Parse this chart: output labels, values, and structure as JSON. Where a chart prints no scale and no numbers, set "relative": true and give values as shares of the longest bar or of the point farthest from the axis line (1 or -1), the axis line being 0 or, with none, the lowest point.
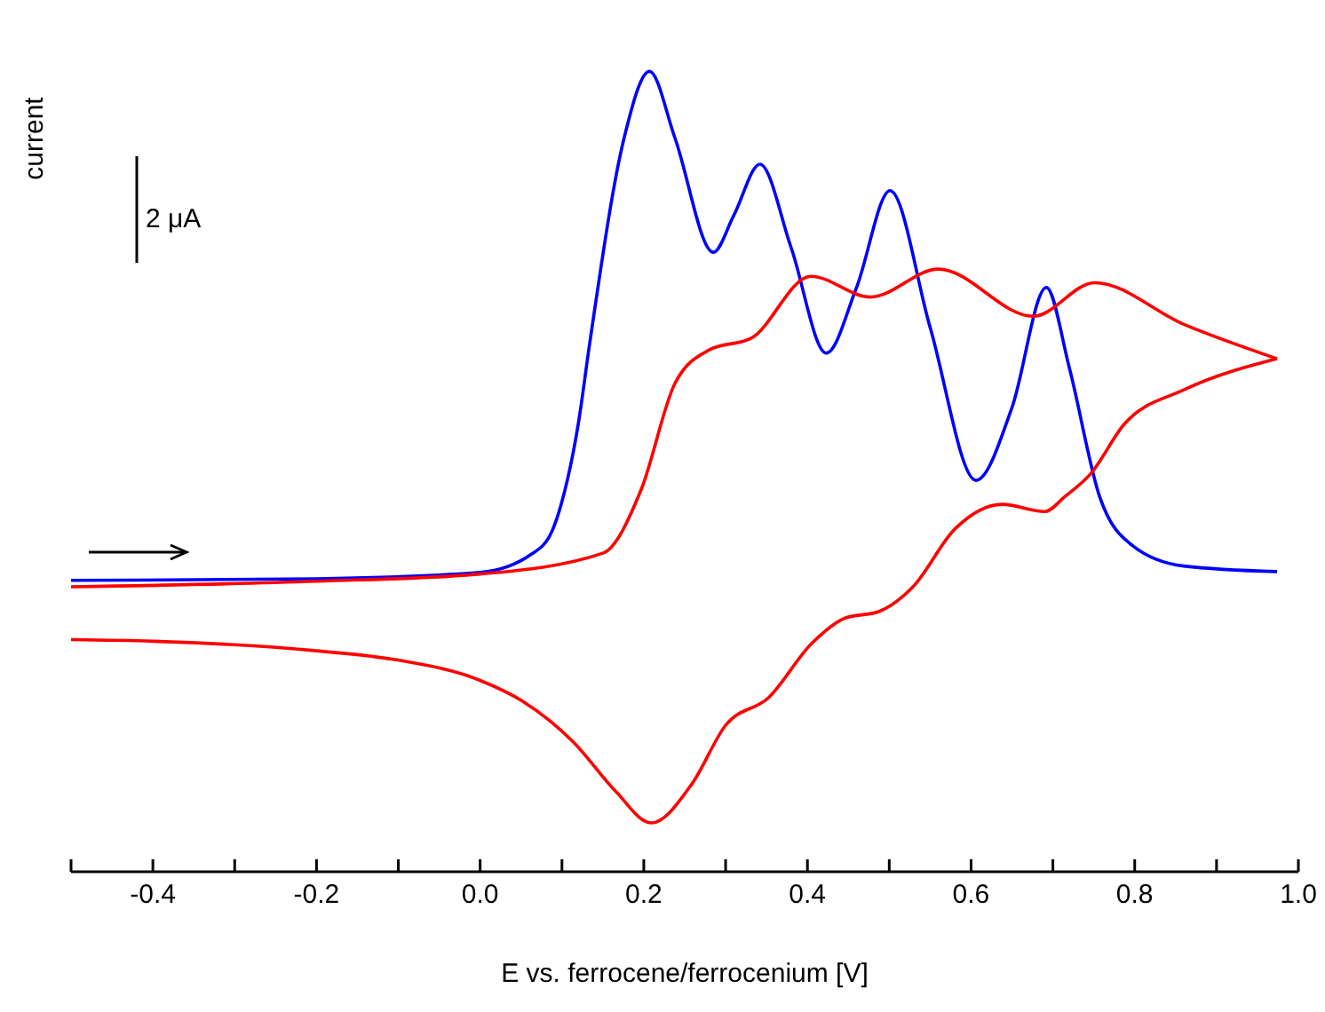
{
  "chart_data": {
    "type": "line",
    "relative": true,
    "xlabel": "E vs. ferrocene/ferrocenium [V]",
    "ylabel": "current",
    "annotations": [
      "2 μA"
    ],
    "xlim": [
      -0.5,
      1.0
    ],
    "xticks": [
      {
        "value": -0.5,
        "label": null
      },
      -0.4,
      {
        "value": -0.3,
        "label": null
      },
      -0.2,
      {
        "value": -0.1,
        "label": null
      },
      {
        "value": 0,
        "label": "0.0"
      },
      {
        "value": 0.1,
        "label": null
      },
      0.2,
      {
        "value": 0.3,
        "label": null
      },
      0.4,
      {
        "value": 0.5,
        "label": null
      },
      0.6,
      {
        "value": 0.7,
        "label": null
      },
      0.8,
      {
        "value": 0.9,
        "label": null
      },
      {
        "value": 1,
        "label": "1.0"
      }
    ],
    "tick_labels": "x",
    "marker": "none",
    "line_style": "solid",
    "series": [
      {
        "color": "#0000ff",
        "x": [
          -0.5,
          -0.2,
          0.0,
          0.063,
          0.088,
          0.099,
          0.12,
          0.134,
          0.176,
          0.207,
          0.238,
          0.285,
          0.31,
          0.342,
          0.38,
          0.423,
          0.46,
          0.501,
          0.55,
          0.606,
          0.65,
          0.692,
          0.72,
          0.757,
          0.798,
          0.86,
          0.974
        ],
        "values": [
          0.364,
          0.366,
          0.374,
          0.397,
          0.426,
          0.459,
          0.56,
          0.661,
          0.917,
          1.0,
          0.917,
          0.774,
          0.82,
          0.884,
          0.78,
          0.648,
          0.73,
          0.851,
          0.68,
          0.489,
          0.58,
          0.73,
          0.63,
          0.469,
          0.407,
          0.382,
          0.375
        ]
      },
      {
        "color": "#ff0000",
        "x": [
          -0.5,
          -0.2,
          0.0,
          0.15,
          0.197,
          0.238,
          0.28,
          0.332,
          0.404,
          0.477,
          0.56,
          0.676,
          0.751,
          0.86,
          0.974
        ],
        "values": [
          0.356,
          0.363,
          0.372,
          0.398,
          0.478,
          0.61,
          0.652,
          0.667,
          0.744,
          0.718,
          0.753,
          0.694,
          0.736,
          0.684,
          0.641
        ]
      },
      {
        "color": "#ff0000",
        "x": [
          0.974,
          0.86,
          0.787,
          0.746,
          0.715,
          0.69,
          0.638,
          0.58,
          0.529,
          0.487,
          0.446,
          0.405,
          0.353,
          0.3,
          0.259,
          0.209,
          0.166,
          0.114,
          0.052,
          0.0,
          -0.104,
          -0.2,
          -0.4,
          -0.5
        ],
        "values": [
          0.641,
          0.602,
          0.559,
          0.497,
          0.469,
          0.45,
          0.459,
          0.428,
          0.356,
          0.325,
          0.317,
          0.285,
          0.218,
          0.183,
          0.11,
          0.061,
          0.1,
          0.162,
          0.213,
          0.239,
          0.265,
          0.276,
          0.288,
          0.29
        ]
      }
    ]
  }
}
